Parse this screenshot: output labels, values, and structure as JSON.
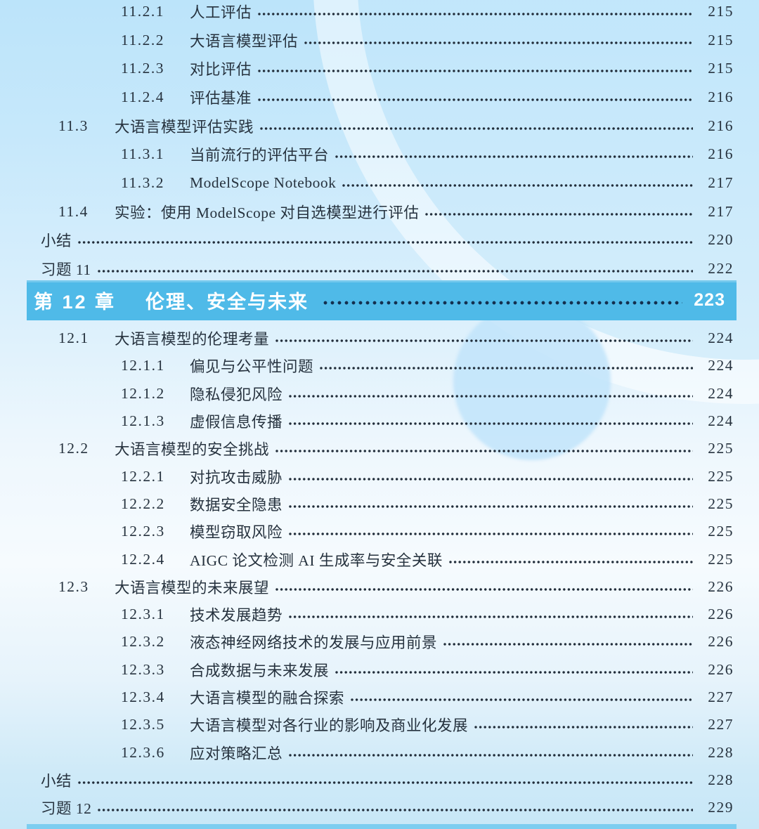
{
  "colors": {
    "bar_bg": "#4fbae8",
    "bar_text": "#ffffff",
    "bar_dot": "#14304f",
    "text": "#26323e",
    "leader_dot": "#212d3a",
    "bg_top": "#bce4fa",
    "bg_mid": "#f6fbfe",
    "bg_bottom": "#c7e7f7",
    "next_bar": "#7ccdf0"
  },
  "toc": {
    "chapter11_rows": [
      {
        "level": 3,
        "num": "11.2.1",
        "title": "人工评估",
        "page": "215"
      },
      {
        "level": 3,
        "num": "11.2.2",
        "title": "大语言模型评估",
        "page": "215"
      },
      {
        "level": 3,
        "num": "11.2.3",
        "title": "对比评估",
        "page": "215"
      },
      {
        "level": 3,
        "num": "11.2.4",
        "title": "评估基准",
        "page": "216"
      },
      {
        "level": 2,
        "num": "11.3",
        "title": "大语言模型评估实践",
        "page": "216"
      },
      {
        "level": 3,
        "num": "11.3.1",
        "title": "当前流行的评估平台",
        "page": "216"
      },
      {
        "level": 3,
        "num": "11.3.2",
        "title": "ModelScope Notebook",
        "page": "217"
      },
      {
        "level": 2,
        "num": "11.4",
        "title": "实验：使用 ModelScope 对自选模型进行评估",
        "page": "217"
      },
      {
        "level": 0,
        "num": "",
        "title": "小结",
        "page": "220"
      },
      {
        "level": 0,
        "num": "",
        "title": "习题 11",
        "page": "222"
      }
    ],
    "chapter_bar": {
      "label": "第 12 章",
      "title": "伦理、安全与未来",
      "page": "223"
    },
    "chapter12_rows": [
      {
        "level": 2,
        "num": "12.1",
        "title": "大语言模型的伦理考量",
        "page": "224"
      },
      {
        "level": 3,
        "num": "12.1.1",
        "title": "偏见与公平性问题",
        "page": "224"
      },
      {
        "level": 3,
        "num": "12.1.2",
        "title": "隐私侵犯风险",
        "page": "224"
      },
      {
        "level": 3,
        "num": "12.1.3",
        "title": "虚假信息传播",
        "page": "224"
      },
      {
        "level": 2,
        "num": "12.2",
        "title": "大语言模型的安全挑战",
        "page": "225"
      },
      {
        "level": 3,
        "num": "12.2.1",
        "title": "对抗攻击威胁",
        "page": "225"
      },
      {
        "level": 3,
        "num": "12.2.2",
        "title": "数据安全隐患",
        "page": "225"
      },
      {
        "level": 3,
        "num": "12.2.3",
        "title": "模型窃取风险",
        "page": "225"
      },
      {
        "level": 3,
        "num": "12.2.4",
        "title": "AIGC 论文检测 AI 生成率与安全关联",
        "page": "225"
      },
      {
        "level": 2,
        "num": "12.3",
        "title": "大语言模型的未来展望",
        "page": "226"
      },
      {
        "level": 3,
        "num": "12.3.1",
        "title": "技术发展趋势",
        "page": "226"
      },
      {
        "level": 3,
        "num": "12.3.2",
        "title": "液态神经网络技术的发展与应用前景",
        "page": "226"
      },
      {
        "level": 3,
        "num": "12.3.3",
        "title": "合成数据与未来发展",
        "page": "226"
      },
      {
        "level": 3,
        "num": "12.3.4",
        "title": "大语言模型的融合探索",
        "page": "227"
      },
      {
        "level": 3,
        "num": "12.3.5",
        "title": "大语言模型对各行业的影响及商业化发展",
        "page": "227"
      },
      {
        "level": 3,
        "num": "12.3.6",
        "title": "应对策略汇总",
        "page": "228"
      },
      {
        "level": 0,
        "num": "",
        "title": "小结",
        "page": "228"
      },
      {
        "level": 0,
        "num": "",
        "title": "习题 12",
        "page": "229"
      }
    ]
  }
}
